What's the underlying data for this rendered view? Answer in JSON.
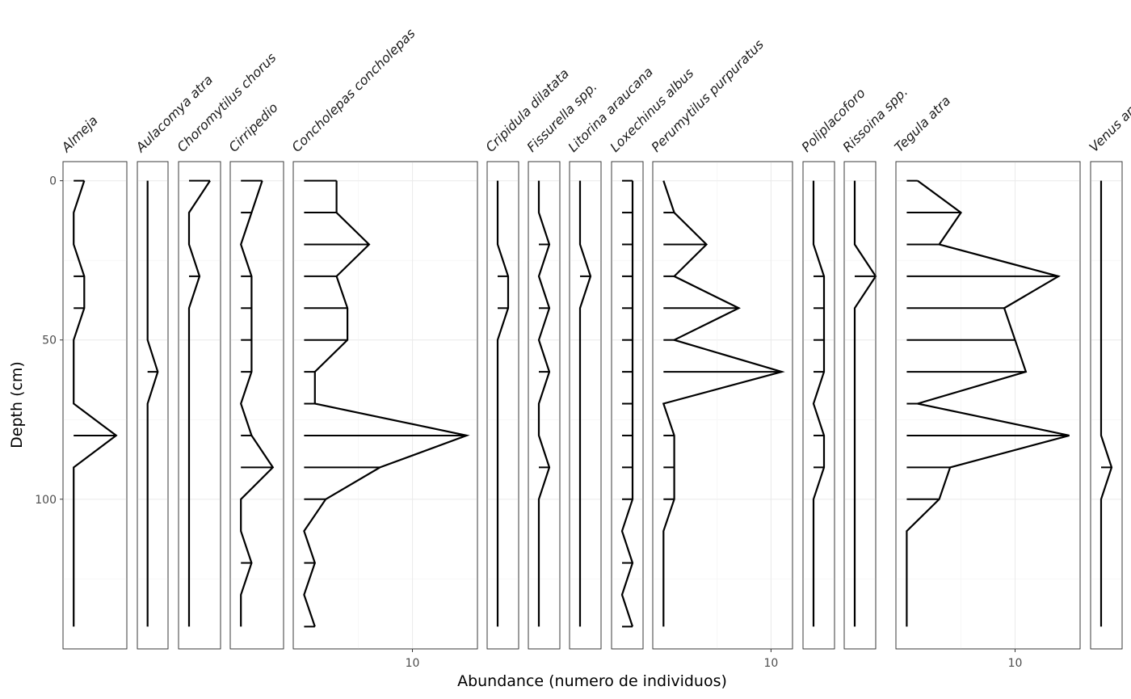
{
  "chart_data": {
    "type": "line",
    "title": "",
    "xlabel": "Abundance (numero de individuos)",
    "ylabel": "Depth (cm)",
    "y_reversed": true,
    "ylim": [
      -6,
      147
    ],
    "y_ticks": [
      0,
      50,
      100
    ],
    "depths": [
      0,
      10,
      20,
      30,
      40,
      50,
      60,
      70,
      80,
      90,
      100,
      110,
      120,
      130,
      140
    ],
    "series": [
      {
        "name": "Almeja",
        "xlim": [
          -1,
          5
        ],
        "x_ticks": [],
        "values": [
          1,
          0,
          0,
          1,
          1,
          0,
          0,
          0,
          4,
          0,
          0,
          0,
          0,
          0,
          0
        ]
      },
      {
        "name": "Aulacomya atra",
        "xlim": [
          -1,
          2
        ],
        "x_ticks": [],
        "values": [
          0,
          0,
          0,
          0,
          0,
          0,
          1,
          0,
          0,
          0,
          0,
          0,
          0,
          0,
          0
        ]
      },
      {
        "name": "Choromytilus chorus",
        "xlim": [
          -1,
          3
        ],
        "x_ticks": [],
        "values": [
          2,
          0,
          0,
          1,
          0,
          0,
          0,
          0,
          0,
          0,
          0,
          0,
          0,
          0,
          0
        ]
      },
      {
        "name": "Cirripedio",
        "xlim": [
          -1,
          4
        ],
        "x_ticks": [],
        "values": [
          2,
          1,
          0,
          1,
          1,
          1,
          1,
          0,
          1,
          3,
          0,
          0,
          1,
          0,
          0
        ]
      },
      {
        "name": "Concholepas concholepas",
        "xlim": [
          -1,
          16
        ],
        "x_ticks": [
          10
        ],
        "values": [
          3,
          3,
          6,
          3,
          4,
          4,
          1,
          1,
          15,
          7,
          2,
          0,
          1,
          0,
          1
        ]
      },
      {
        "name": "Cripidula dilatata",
        "xlim": [
          -1,
          2
        ],
        "x_ticks": [],
        "values": [
          0,
          0,
          0,
          1,
          1,
          0,
          0,
          0,
          0,
          0,
          0,
          0,
          0,
          0,
          0
        ]
      },
      {
        "name": "Fissurella spp.",
        "xlim": [
          -1,
          2
        ],
        "x_ticks": [],
        "values": [
          0,
          0,
          1,
          0,
          1,
          0,
          1,
          0,
          0,
          1,
          0,
          0,
          0,
          0,
          0
        ]
      },
      {
        "name": "Litorina araucana",
        "xlim": [
          -1,
          2
        ],
        "x_ticks": [],
        "values": [
          0,
          0,
          0,
          1,
          0,
          0,
          0,
          0,
          0,
          0,
          0,
          0,
          0,
          0,
          0
        ]
      },
      {
        "name": "Loxechinus albus",
        "xlim": [
          -1,
          2
        ],
        "x_ticks": [],
        "values": [
          1,
          1,
          1,
          1,
          1,
          1,
          1,
          1,
          1,
          1,
          1,
          0,
          1,
          0,
          1
        ]
      },
      {
        "name": "Perumytilus purpuratus",
        "xlim": [
          -1,
          12
        ],
        "x_ticks": [
          10
        ],
        "values": [
          0,
          1,
          4,
          1,
          7,
          1,
          11,
          0,
          1,
          1,
          1,
          0,
          0,
          0,
          0
        ]
      },
      {
        "name": "Poliplacoforo",
        "xlim": [
          -1,
          2
        ],
        "x_ticks": [],
        "values": [
          0,
          0,
          0,
          1,
          1,
          1,
          1,
          0,
          1,
          1,
          0,
          0,
          0,
          0,
          0
        ]
      },
      {
        "name": "Rissoina spp.",
        "xlim": [
          -1,
          2
        ],
        "x_ticks": [],
        "values": [
          0,
          0,
          0,
          2,
          0,
          0,
          0,
          0,
          0,
          0,
          0,
          0,
          0,
          0,
          0
        ]
      },
      {
        "name": "Tegula atra",
        "xlim": [
          -1,
          16
        ],
        "x_ticks": [
          10
        ],
        "values": [
          1,
          5,
          3,
          14,
          9,
          10,
          11,
          1,
          15,
          4,
          3,
          0,
          0,
          0,
          0
        ]
      },
      {
        "name": "Venus antiqua",
        "xlim": [
          -1,
          2
        ],
        "x_ticks": [],
        "values": [
          0,
          0,
          0,
          0,
          0,
          0,
          0,
          0,
          0,
          1,
          0,
          0,
          0,
          0,
          0
        ]
      }
    ]
  }
}
